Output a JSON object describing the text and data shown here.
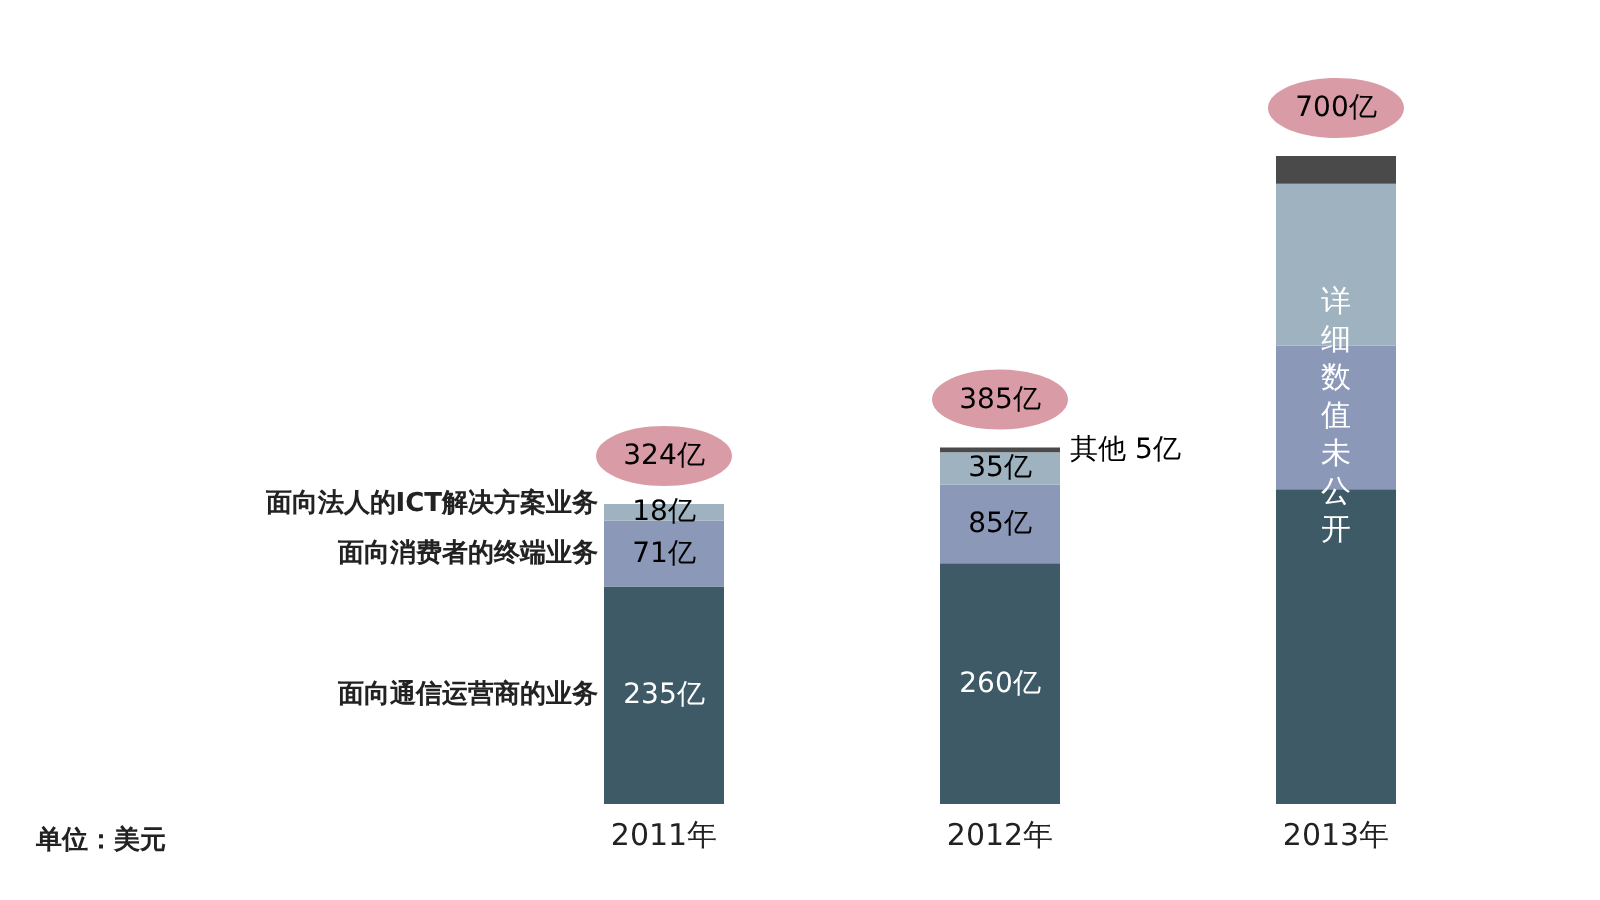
{
  "chart_data": {
    "type": "bar",
    "stacked": true,
    "categories": [
      "2011年",
      "2012年",
      "2013年"
    ],
    "series": [
      {
        "name": "面向通信运营商的业务",
        "color": "#3e5a66",
        "values": [
          235,
          260,
          340
        ],
        "value_labels": [
          "235亿",
          "260亿",
          null
        ]
      },
      {
        "name": "面向消费者的终端业务",
        "color": "#8c98b8",
        "values": [
          71,
          85,
          155
        ],
        "value_labels": [
          "71亿",
          "85亿",
          null
        ]
      },
      {
        "name": "面向法人的ICT解决方案业务",
        "color": "#9fb2bf",
        "values": [
          18,
          35,
          175
        ],
        "value_labels": [
          "18亿",
          "35亿",
          null
        ]
      },
      {
        "name": "其他",
        "color": "#4a4a4a",
        "values": [
          null,
          5,
          30
        ],
        "value_labels": [
          null,
          "5亿",
          null
        ]
      }
    ],
    "totals": [
      "324亿",
      "385亿",
      "700亿"
    ],
    "annotations": [
      "单位：美元",
      "详细数值未公开"
    ],
    "legend": false,
    "grid": false
  }
}
